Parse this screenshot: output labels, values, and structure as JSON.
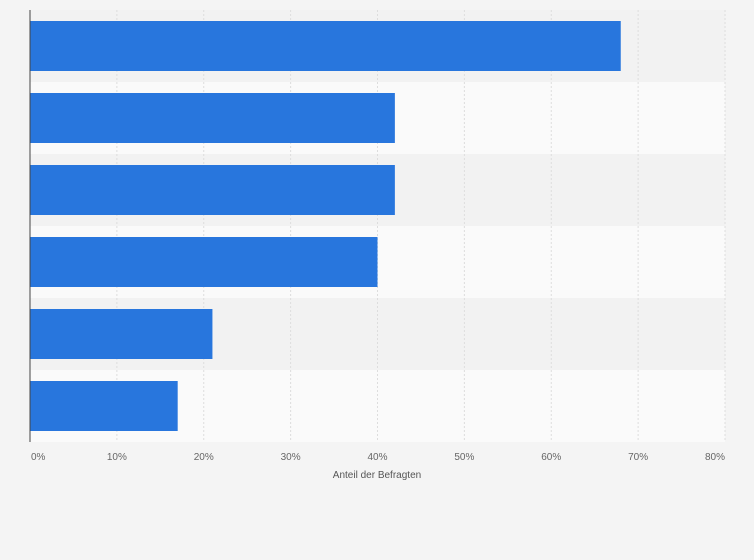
{
  "chart_data": {
    "type": "bar",
    "orientation": "horizontal",
    "categories": [
      "",
      "",
      "",
      "",
      "",
      ""
    ],
    "values": [
      68,
      42,
      42,
      40,
      21,
      17
    ],
    "value_unit": "%",
    "xlabel": "Anteil der Befragten",
    "xlim": [
      0,
      80
    ],
    "xticks": [
      "0%",
      "10%",
      "20%",
      "30%",
      "40%",
      "50%",
      "60%",
      "70%",
      "80%"
    ],
    "grid": true,
    "legend": "none",
    "bar_color": "#2876dd"
  }
}
